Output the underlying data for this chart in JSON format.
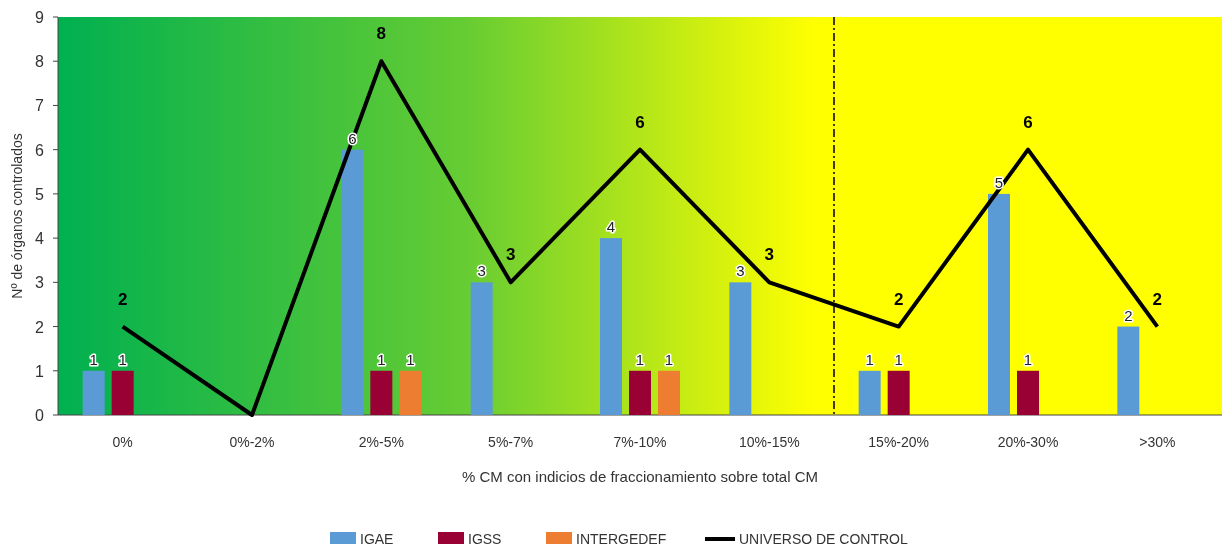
{
  "chart_data": {
    "type": "bar",
    "xlabel": "% CM con indicios de fraccionamiento sobre total CM",
    "ylabel": "Nº de órganos controlados",
    "categories": [
      "0%",
      "0%-2%",
      "2%-5%",
      "5%-7%",
      "7%-10%",
      "10%-15%",
      "15%-20%",
      "20%-30%",
      ">30%"
    ],
    "series": [
      {
        "name": "IGAE",
        "color": "#5b9bd5",
        "values": [
          1,
          null,
          6,
          3,
          4,
          3,
          1,
          5,
          2
        ]
      },
      {
        "name": "IGSS",
        "color": "#990033",
        "values": [
          1,
          null,
          1,
          null,
          1,
          null,
          1,
          1,
          null
        ]
      },
      {
        "name": "INTERGEDEF",
        "color": "#ed7d31",
        "values": [
          null,
          null,
          1,
          null,
          1,
          null,
          null,
          null,
          null
        ]
      },
      {
        "name": "UNIVERSO DE CONTROL",
        "type": "line",
        "color": "#000000",
        "values": [
          2,
          0,
          8,
          3,
          6,
          3,
          2,
          6,
          2
        ],
        "value_labels": [
          "2",
          null,
          "8",
          "3",
          "6",
          "3",
          "2",
          "6",
          "2"
        ]
      }
    ],
    "ylim": [
      0,
      9
    ],
    "yticks": [
      0,
      1,
      2,
      3,
      4,
      5,
      6,
      7,
      8,
      9
    ],
    "grid": false,
    "legend": "bottom",
    "data_labels": true,
    "marker": "none",
    "line_style": "solid"
  }
}
